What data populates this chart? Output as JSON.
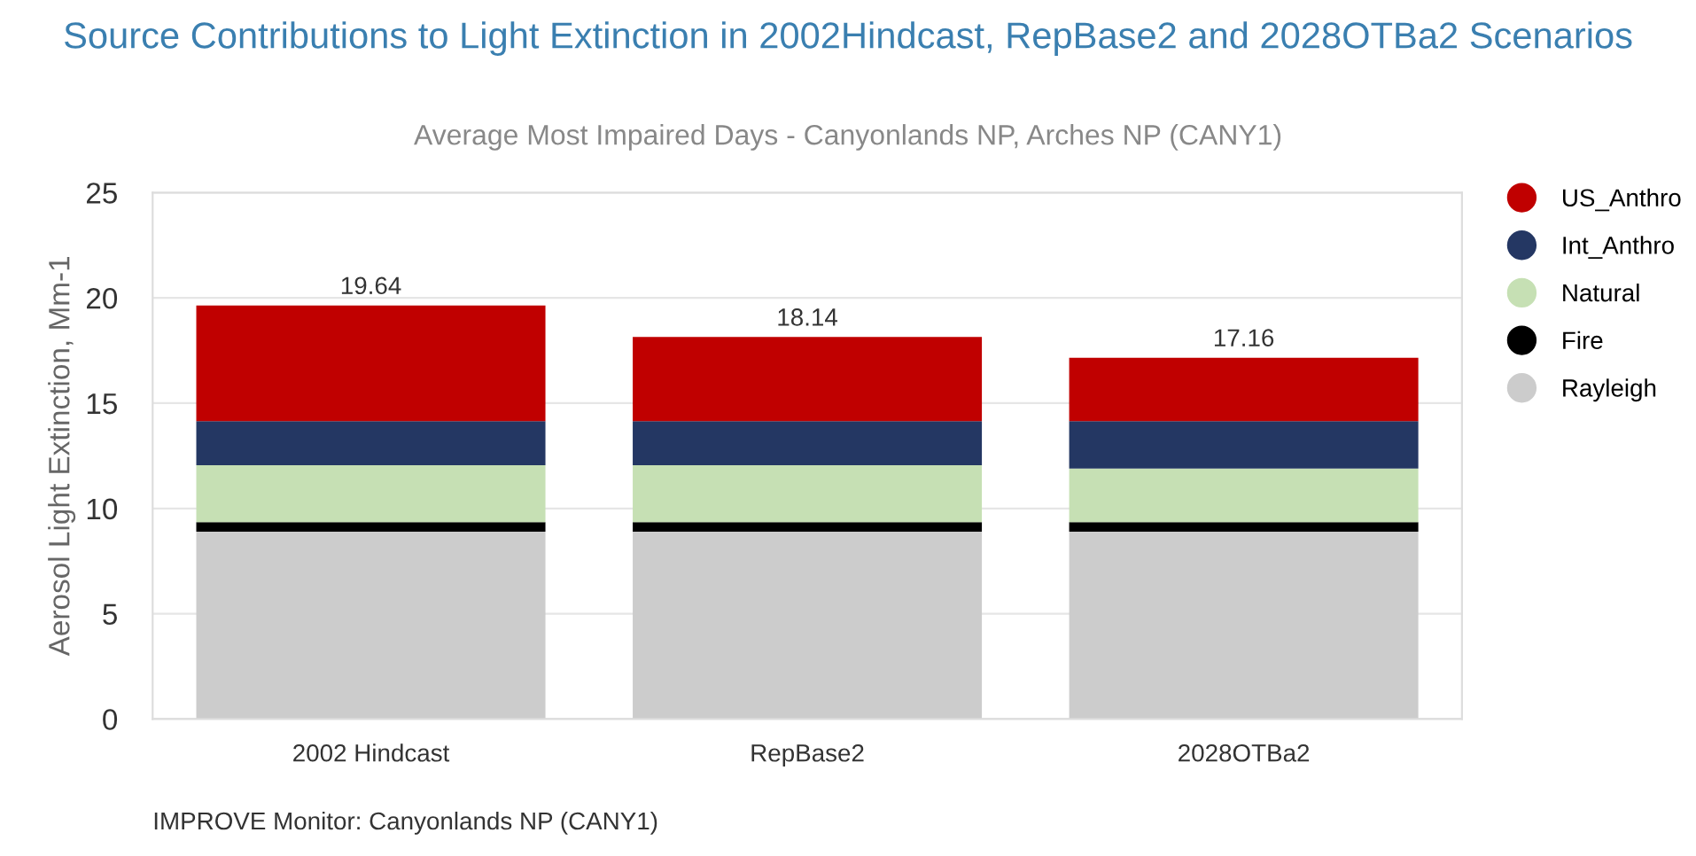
{
  "chart_data": {
    "type": "bar",
    "stacked": true,
    "title": "Source Contributions to Light Extinction in 2002Hindcast, RepBase2 and 2028OTBa2 Scenarios",
    "subtitle": "Average Most Impaired Days - Canyonlands NP, Arches NP (CANY1)",
    "ylabel": "Aerosol Light Extinction, Mm-1",
    "categories": [
      "2002 Hindcast",
      "RepBase2",
      "2028OTBa2"
    ],
    "series": [
      {
        "name": "Rayleigh",
        "color": "#cccccc",
        "values": [
          8.9,
          8.9,
          8.9
        ]
      },
      {
        "name": "Fire",
        "color": "#000000",
        "values": [
          0.45,
          0.45,
          0.45
        ]
      },
      {
        "name": "Natural",
        "color": "#c6e0b4",
        "values": [
          2.7,
          2.7,
          2.55
        ]
      },
      {
        "name": "Int_Anthro",
        "color": "#243763",
        "values": [
          2.1,
          2.1,
          2.25
        ]
      },
      {
        "name": "US_Anthro",
        "color": "#c00000",
        "values": [
          5.49,
          3.99,
          3.01
        ]
      }
    ],
    "totals": [
      "19.64",
      "18.14",
      "17.16"
    ],
    "ylim": [
      0,
      25
    ],
    "yticks": [
      0,
      5,
      10,
      15,
      20,
      25
    ],
    "grid": "y",
    "legend": "right",
    "annotations": [
      "IMPROVE Monitor: Canyonlands NP (CANY1)"
    ]
  }
}
